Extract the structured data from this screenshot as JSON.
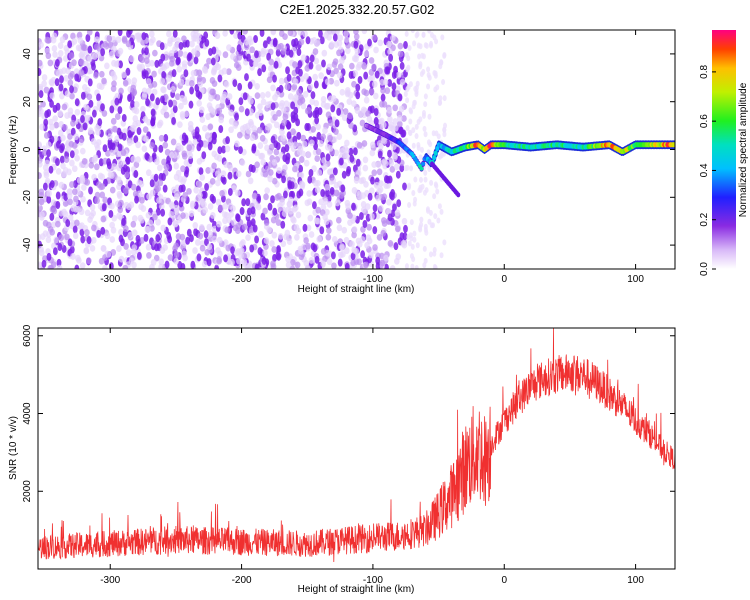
{
  "title": "C2E1.2025.332.20.57.G02",
  "chart_data": [
    {
      "type": "heatmap",
      "xlabel": "Height of straight line (km)",
      "ylabel": "Frequency (Hz)",
      "xlim": [
        -355,
        130
      ],
      "ylim": [
        -50,
        50
      ],
      "xticks": [
        -300,
        -200,
        -100,
        0,
        100
      ],
      "yticks": [
        -40,
        -20,
        0,
        20,
        40
      ],
      "colorbar": {
        "label": "Normalized spectral amplitude",
        "range": [
          0.0,
          0.97
        ],
        "ticks": [
          "0.0",
          "0.2",
          "0.4",
          "0.6",
          "0.8"
        ],
        "colormap": "rainbow (white-violet-blue-cyan-green-yellow-red)"
      },
      "noise_region": {
        "x_from": -355,
        "x_to": -75,
        "amplitude": 0.1
      },
      "signal_track": {
        "x": [
          -105,
          -90,
          -80,
          -70,
          -63,
          -60,
          -55,
          -50,
          -40,
          -30,
          -20,
          -15,
          -10,
          0,
          20,
          40,
          60,
          80,
          90,
          100,
          130
        ],
        "freq": [
          10,
          6,
          3,
          -2,
          -8,
          -3,
          -6,
          2,
          -1,
          1,
          2,
          0,
          2,
          2,
          1,
          2,
          1,
          2,
          -1,
          2,
          2
        ],
        "amplitude": [
          0.15,
          0.2,
          0.3,
          0.4,
          0.5,
          0.35,
          0.5,
          0.4,
          0.5,
          0.55,
          0.9,
          0.7,
          0.9,
          0.55,
          0.5,
          0.55,
          0.5,
          0.9,
          0.8,
          0.6,
          0.9
        ]
      }
    },
    {
      "type": "line",
      "xlabel": "Height of straight line (km)",
      "ylabel": "SNR (10 * v/v)",
      "xlim": [
        -355,
        130
      ],
      "ylim": [
        0,
        6200
      ],
      "xticks": [
        -300,
        -200,
        -100,
        0,
        100
      ],
      "yticks": [
        2000,
        4000,
        6000
      ],
      "color": "#f03030",
      "series": [
        {
          "x": [
            -355,
            -300,
            -250,
            -200,
            -150,
            -100,
            -80,
            -60,
            -50,
            -40,
            -30,
            -20,
            -15,
            -10,
            0,
            10,
            20,
            30,
            40,
            50,
            60,
            70,
            80,
            90,
            100,
            110,
            120,
            130
          ],
          "values": [
            550,
            650,
            750,
            700,
            650,
            800,
            850,
            1000,
            1400,
            1900,
            2600,
            3100,
            2800,
            3200,
            3800,
            4300,
            4700,
            4900,
            5000,
            5050,
            5000,
            4800,
            4500,
            4200,
            3800,
            3500,
            3100,
            2800
          ]
        }
      ]
    }
  ]
}
